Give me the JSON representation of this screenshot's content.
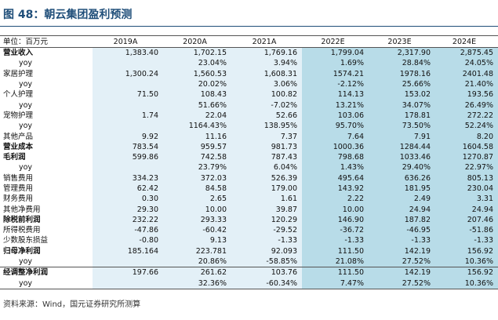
{
  "title": "图 48：朝云集团盈利预测",
  "table": {
    "header": [
      "单位：百万元",
      "2019A",
      "2020A",
      "2021A",
      "2022E",
      "2023E",
      "2024E"
    ],
    "rows": [
      [
        "营业收入",
        "1,383.40",
        "1,702.15",
        "1,769.16",
        "1,799.04",
        "2,317.90",
        "2,875.45"
      ],
      [
        "yoy",
        null,
        "23.04%",
        "3.94%",
        "1.69%",
        "28.84%",
        "24.05%"
      ],
      [
        "家居护理",
        "1,300.24",
        "1,560.53",
        "1,608.31",
        "1574.21",
        "1978.16",
        "2401.48"
      ],
      [
        "yoy",
        null,
        "20.02%",
        "3.06%",
        "-2.12%",
        "25.66%",
        "21.40%"
      ],
      [
        "个人护理",
        "71.50",
        "108.43",
        "100.82",
        "114.13",
        "153.02",
        "193.56"
      ],
      [
        "yoy",
        null,
        "51.66%",
        "-7.02%",
        "13.21%",
        "34.07%",
        "26.49%"
      ],
      [
        "宠物护理",
        "1.74",
        "22.04",
        "52.66",
        "103.06",
        "178.81",
        "272.22"
      ],
      [
        "yoy",
        null,
        "1164.43%",
        "138.95%",
        "95.70%",
        "73.50%",
        "52.24%"
      ],
      [
        "其他产品",
        "9.92",
        "11.16",
        "7.37",
        "7.64",
        "7.91",
        "8.20"
      ],
      [
        "营业成本",
        "783.54",
        "959.57",
        "981.73",
        "1000.36",
        "1284.44",
        "1604.58"
      ],
      [
        "毛利润",
        "599.86",
        "742.58",
        "787.43",
        "798.68",
        "1033.46",
        "1270.87"
      ],
      [
        "yoy",
        null,
        "23.79%",
        "6.04%",
        "1.43%",
        "29.40%",
        "22.97%"
      ],
      [
        "销售费用",
        "334.23",
        "372.03",
        "526.39",
        "495.64",
        "636.26",
        "805.13"
      ],
      [
        "管理费用",
        "62.42",
        "84.58",
        "179.00",
        "143.92",
        "181.95",
        "230.04"
      ],
      [
        "财务费用",
        "0.30",
        "2.65",
        "1.61",
        "2.22",
        "2.49",
        "3.31"
      ],
      [
        "其他净费用",
        "29.30",
        "10.00",
        "39.87",
        "10.00",
        "24.94",
        "24.94"
      ],
      [
        "除税前利润",
        "232.22",
        "293.33",
        "120.29",
        "146.90",
        "187.82",
        "207.46"
      ],
      [
        "所得税费用",
        "-47.86",
        "-60.42",
        "-29.52",
        "-36.72",
        "-46.95",
        "-51.86"
      ],
      [
        "少数股东损益",
        "-0.80",
        "9.13",
        "-1.33",
        "-1.33",
        "-1.33",
        "-1.33"
      ],
      [
        "归母净利润",
        "185.164",
        "223.781",
        "92.093",
        "111.50",
        "142.19",
        "156.92"
      ],
      [
        "yoy",
        null,
        "20.86%",
        "-58.85%",
        "21.08%",
        "27.52%",
        "10.36%"
      ],
      [
        "经调整净利润",
        "197.66",
        "261.62",
        "103.76",
        "111.50",
        "142.19",
        "156.92"
      ],
      [
        "yoy",
        null,
        "32.36%",
        "-60.34%",
        "7.47%",
        "27.52%",
        "10.36%"
      ]
    ]
  },
  "source": "资料来源：Wind，国元证券研究所测算"
}
